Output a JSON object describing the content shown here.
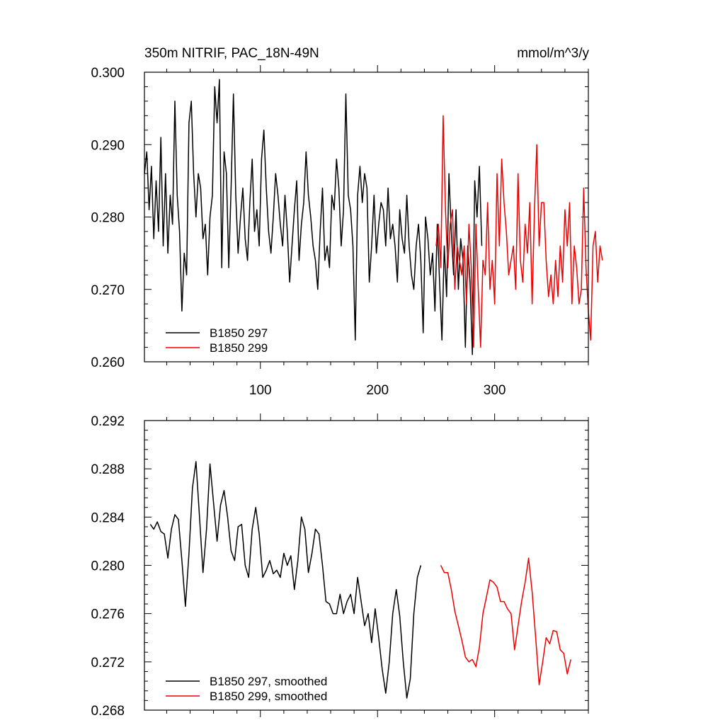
{
  "chart_data": [
    {
      "type": "line",
      "title_left": "350m NITRIF, PAC_18N-49N",
      "title_right": "mmol/m^3/y",
      "xlim": [
        1,
        380
      ],
      "ylim": [
        0.26,
        0.3
      ],
      "yticks": [
        {
          "value": 0.26,
          "label": "0.260"
        },
        {
          "value": 0.27,
          "label": "0.270"
        },
        {
          "value": 0.28,
          "label": "0.280"
        },
        {
          "value": 0.29,
          "label": "0.290"
        },
        {
          "value": 0.3,
          "label": "0.300"
        }
      ],
      "xticks": [
        {
          "value": 100,
          "label": "100"
        },
        {
          "value": 200,
          "label": "200"
        },
        {
          "value": 300,
          "label": "300"
        }
      ],
      "series": [
        {
          "name": "B1850 297",
          "color": "#000000",
          "x_start": 1,
          "x_step": 2,
          "values": [
            0.286,
            0.289,
            0.281,
            0.287,
            0.277,
            0.285,
            0.278,
            0.291,
            0.276,
            0.286,
            0.275,
            0.283,
            0.279,
            0.296,
            0.283,
            0.278,
            0.267,
            0.275,
            0.272,
            0.293,
            0.296,
            0.286,
            0.28,
            0.286,
            0.284,
            0.277,
            0.279,
            0.272,
            0.28,
            0.283,
            0.298,
            0.293,
            0.299,
            0.273,
            0.289,
            0.286,
            0.273,
            0.284,
            0.297,
            0.283,
            0.275,
            0.28,
            0.284,
            0.277,
            0.274,
            0.282,
            0.288,
            0.278,
            0.281,
            0.276,
            0.288,
            0.292,
            0.284,
            0.278,
            0.275,
            0.28,
            0.286,
            0.283,
            0.279,
            0.276,
            0.283,
            0.278,
            0.271,
            0.276,
            0.281,
            0.285,
            0.274,
            0.279,
            0.282,
            0.289,
            0.283,
            0.28,
            0.276,
            0.274,
            0.27,
            0.278,
            0.284,
            0.274,
            0.276,
            0.273,
            0.283,
            0.281,
            0.288,
            0.284,
            0.276,
            0.281,
            0.297,
            0.283,
            0.281,
            0.276,
            0.263,
            0.283,
            0.287,
            0.282,
            0.286,
            0.284,
            0.271,
            0.276,
            0.283,
            0.275,
            0.279,
            0.282,
            0.281,
            0.276,
            0.284,
            0.277,
            0.279,
            0.276,
            0.271,
            0.281,
            0.277,
            0.275,
            0.283,
            0.276,
            0.272,
            0.27,
            0.276,
            0.279,
            0.274,
            0.264,
            0.28,
            0.277,
            0.272,
            0.275,
            0.267,
            0.279,
            0.271,
            0.263,
            0.276,
            0.269,
            0.286,
            0.278,
            0.272,
            0.281,
            0.27,
            0.277,
            0.274,
            0.262,
            0.276,
            0.271,
            0.261,
            0.285,
            0.28,
            0.287,
            0.276
          ]
        },
        {
          "name": "B1850 299",
          "color": "#ee0000",
          "x_start": 250,
          "x_step": 2,
          "values": [
            0.276,
            0.279,
            0.273,
            0.294,
            0.281,
            0.273,
            0.279,
            0.281,
            0.27,
            0.276,
            0.274,
            0.272,
            0.276,
            0.268,
            0.279,
            0.273,
            0.262,
            0.279,
            0.27,
            0.262,
            0.274,
            0.272,
            0.282,
            0.27,
            0.274,
            0.268,
            0.286,
            0.276,
            0.288,
            0.282,
            0.278,
            0.272,
            0.274,
            0.276,
            0.27,
            0.286,
            0.274,
            0.271,
            0.279,
            0.275,
            0.282,
            0.268,
            0.281,
            0.29,
            0.276,
            0.282,
            0.282,
            0.274,
            0.269,
            0.272,
            0.268,
            0.274,
            0.269,
            0.276,
            0.271,
            0.281,
            0.276,
            0.282,
            0.268,
            0.276,
            0.273,
            0.268,
            0.27,
            0.284,
            0.273,
            0.267,
            0.263,
            0.276,
            0.278,
            0.271,
            0.276,
            0.274
          ]
        }
      ],
      "legend": {
        "position": "bottom-left",
        "entries": [
          "B1850 297",
          "B1850 299"
        ]
      }
    },
    {
      "type": "line",
      "xlim": [
        1,
        380
      ],
      "ylim": [
        0.268,
        0.292
      ],
      "yticks": [
        {
          "value": 0.268,
          "label": "0.268"
        },
        {
          "value": 0.272,
          "label": "0.272"
        },
        {
          "value": 0.276,
          "label": "0.276"
        },
        {
          "value": 0.28,
          "label": "0.280"
        },
        {
          "value": 0.284,
          "label": "0.284"
        },
        {
          "value": 0.288,
          "label": "0.288"
        },
        {
          "value": 0.292,
          "label": "0.292"
        }
      ],
      "xticks": [],
      "series": [
        {
          "name": "B1850 297, smoothed",
          "color": "#000000",
          "x_start": 6,
          "x_step": 3,
          "values": [
            0.2834,
            0.283,
            0.2836,
            0.2828,
            0.2826,
            0.2806,
            0.283,
            0.2842,
            0.2838,
            0.2804,
            0.2766,
            0.281,
            0.2864,
            0.2886,
            0.284,
            0.2794,
            0.283,
            0.2884,
            0.2852,
            0.282,
            0.285,
            0.2862,
            0.284,
            0.2812,
            0.2804,
            0.2832,
            0.2834,
            0.28,
            0.279,
            0.283,
            0.2848,
            0.2826,
            0.279,
            0.2796,
            0.2804,
            0.2793,
            0.2796,
            0.279,
            0.281,
            0.28,
            0.2808,
            0.278,
            0.2804,
            0.284,
            0.283,
            0.2794,
            0.281,
            0.283,
            0.2826,
            0.28,
            0.277,
            0.2768,
            0.276,
            0.276,
            0.2776,
            0.276,
            0.277,
            0.2776,
            0.276,
            0.279,
            0.277,
            0.275,
            0.276,
            0.2736,
            0.2764,
            0.274,
            0.2714,
            0.2694,
            0.272,
            0.276,
            0.278,
            0.2758,
            0.272,
            0.269,
            0.2706,
            0.276,
            0.279,
            0.28
          ]
        },
        {
          "name": "B1850 299, smoothed",
          "color": "#ee0000",
          "x_start": 254,
          "x_step": 3,
          "values": [
            0.28,
            0.2794,
            0.2794,
            0.278,
            0.2762,
            0.275,
            0.2738,
            0.2724,
            0.272,
            0.2722,
            0.2716,
            0.2732,
            0.276,
            0.2774,
            0.2788,
            0.2786,
            0.2782,
            0.277,
            0.277,
            0.2764,
            0.276,
            0.273,
            0.275,
            0.277,
            0.2786,
            0.2806,
            0.2778,
            0.274,
            0.2701,
            0.272,
            0.274,
            0.2735,
            0.2746,
            0.2745,
            0.273,
            0.2727,
            0.271,
            0.2722
          ]
        }
      ],
      "legend": {
        "position": "bottom-left",
        "entries": [
          "B1850 297, smoothed",
          "B1850 299, smoothed"
        ]
      }
    }
  ]
}
